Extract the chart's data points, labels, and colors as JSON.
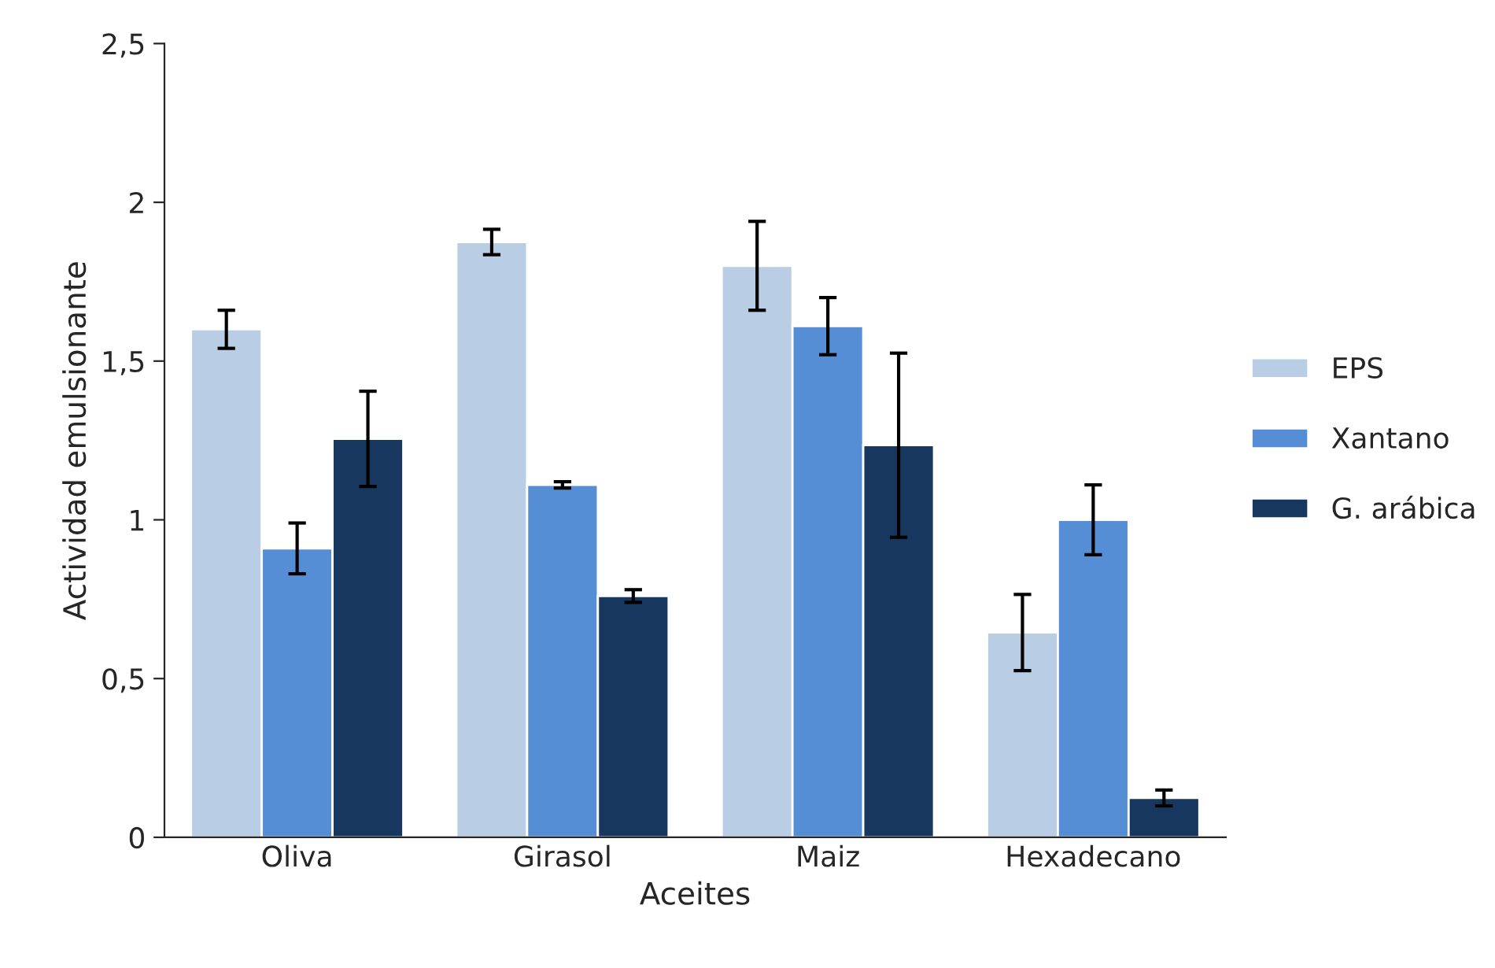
{
  "chart_data": {
    "type": "bar",
    "xlabel": "Aceites",
    "ylabel": "Actividad emulsionante",
    "categories": [
      "Oliva",
      "Girasol",
      "Maiz",
      "Hexadecano"
    ],
    "series": [
      {
        "name": "EPS",
        "color": "#b9cde5",
        "values": [
          1.6,
          1.875,
          1.8,
          0.645
        ],
        "errors": [
          0.06,
          0.04,
          0.14,
          0.12
        ]
      },
      {
        "name": "Xantano",
        "color": "#558ed5",
        "values": [
          0.91,
          1.11,
          1.61,
          1.0
        ],
        "errors": [
          0.08,
          0.01,
          0.09,
          0.11
        ]
      },
      {
        "name": "G. arábica",
        "color": "#17375e",
        "values": [
          1.255,
          0.76,
          1.235,
          0.124
        ],
        "errors": [
          0.15,
          0.02,
          0.29,
          0.025
        ]
      }
    ],
    "ylim": [
      0,
      2.5
    ],
    "yticks": [
      {
        "value": 0,
        "label": "0"
      },
      {
        "value": 0.5,
        "label": "0,5"
      },
      {
        "value": 1,
        "label": "1"
      },
      {
        "value": 1.5,
        "label": "1,5"
      },
      {
        "value": 2,
        "label": "2"
      },
      {
        "value": 2.5,
        "label": "2,5"
      }
    ],
    "legend": "right",
    "grid": false
  }
}
